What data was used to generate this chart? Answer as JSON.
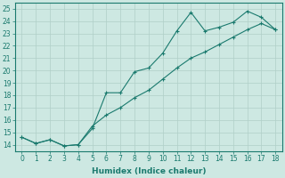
{
  "xlabel": "Humidex (Indice chaleur)",
  "bg_color": "#cde8e2",
  "line_color": "#1a7a6e",
  "xlim": [
    -0.5,
    18.5
  ],
  "ylim": [
    13.5,
    25.5
  ],
  "xticks": [
    0,
    1,
    2,
    3,
    4,
    5,
    6,
    7,
    8,
    9,
    10,
    11,
    12,
    13,
    14,
    15,
    16,
    17,
    18
  ],
  "yticks": [
    14,
    15,
    16,
    17,
    18,
    19,
    20,
    21,
    22,
    23,
    24,
    25
  ],
  "line1_x": [
    0,
    1,
    2,
    3,
    4,
    5,
    6,
    7,
    8,
    9,
    10,
    11,
    12,
    13,
    14,
    15,
    16,
    17,
    18
  ],
  "line1_y": [
    14.6,
    14.1,
    14.4,
    13.9,
    14.0,
    15.3,
    18.2,
    18.2,
    19.9,
    20.2,
    21.4,
    23.2,
    24.7,
    23.2,
    23.5,
    23.9,
    24.8,
    24.3,
    23.3
  ],
  "line2_x": [
    0,
    1,
    2,
    3,
    4,
    5,
    6,
    7,
    8,
    9,
    10,
    11,
    12,
    13,
    14,
    15,
    16,
    17,
    18
  ],
  "line2_y": [
    14.6,
    14.1,
    14.4,
    13.9,
    14.0,
    15.5,
    16.4,
    17.0,
    17.8,
    18.4,
    19.3,
    20.2,
    21.0,
    21.5,
    22.1,
    22.7,
    23.3,
    23.8,
    23.3
  ],
  "marker": "+",
  "marker_size": 3,
  "linewidth": 0.8,
  "grid_color": "#b0cfc8",
  "tick_color": "#1a7a6e",
  "font_size": 5.5,
  "xlabel_fontsize": 6.5
}
